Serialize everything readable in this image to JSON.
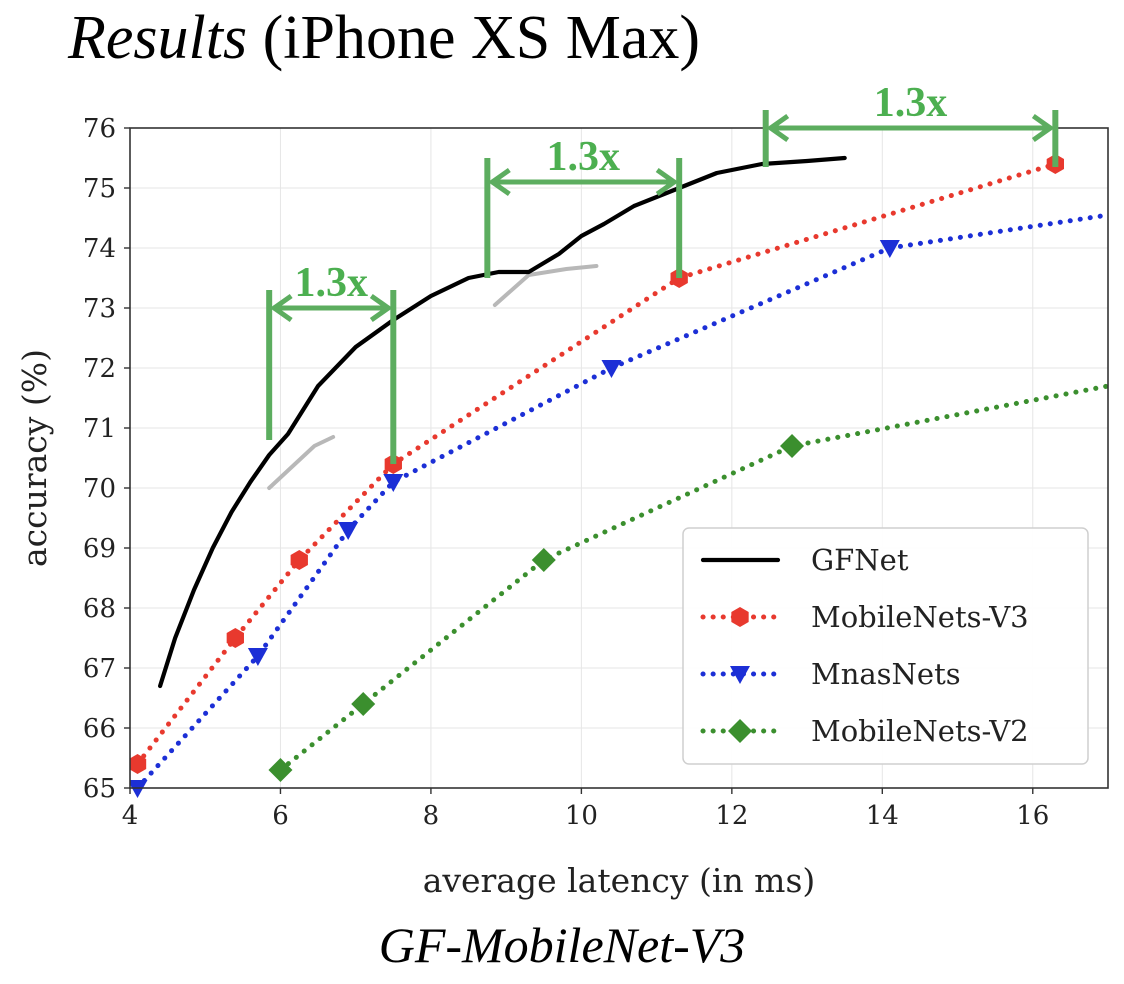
{
  "header": {
    "title_italic": "Results",
    "title_rest": " (iPhone XS Max)"
  },
  "caption": "GF-MobileNet-V3",
  "chart_data": {
    "type": "line",
    "xlabel": "average latency (in ms)",
    "ylabel": "accuracy (%)",
    "xlim": [
      4,
      17
    ],
    "ylim": [
      65,
      76
    ],
    "xticks": [
      4,
      6,
      8,
      10,
      12,
      14,
      16
    ],
    "yticks": [
      65,
      66,
      67,
      68,
      69,
      70,
      71,
      72,
      73,
      74,
      75,
      76
    ],
    "grid": true,
    "legend_position": "lower-right",
    "series": [
      {
        "name": "GFNet",
        "color": "#000000",
        "style": "solid",
        "marker": "none",
        "x": [
          4.4,
          4.6,
          4.85,
          5.1,
          5.35,
          5.6,
          5.85,
          6.1,
          6.5,
          7.0,
          7.5,
          8.0,
          8.5,
          8.9,
          9.3,
          9.7,
          10.0,
          10.3,
          10.7,
          11.2,
          11.8,
          12.4,
          13.0,
          13.5
        ],
        "y": [
          66.7,
          67.5,
          68.3,
          69.0,
          69.6,
          70.1,
          70.55,
          70.9,
          71.7,
          72.35,
          72.8,
          73.2,
          73.5,
          73.6,
          73.6,
          73.9,
          74.2,
          74.4,
          74.7,
          74.95,
          75.25,
          75.4,
          75.45,
          75.5
        ]
      },
      {
        "name": "MobileNets-V3",
        "color": "#e8392e",
        "style": "dotted",
        "marker": "hexagon",
        "x": [
          4.1,
          5.4,
          6.25,
          7.5,
          11.3,
          16.3
        ],
        "y": [
          65.4,
          67.5,
          68.8,
          70.4,
          73.5,
          75.4
        ]
      },
      {
        "name": "MnasNets",
        "color": "#1c2fd6",
        "style": "dotted",
        "marker": "triangle-down",
        "x": [
          4.1,
          5.7,
          6.9,
          7.5,
          10.4,
          14.1,
          17.0
        ],
        "y": [
          65.0,
          67.2,
          69.3,
          70.1,
          72.0,
          74.0,
          74.55
        ]
      },
      {
        "name": "MobileNets-V2",
        "color": "#3b8f2e",
        "style": "dotted",
        "marker": "diamond",
        "x": [
          6.0,
          7.1,
          9.5,
          12.8,
          17.0
        ],
        "y": [
          65.3,
          66.4,
          68.8,
          70.7,
          71.7
        ]
      }
    ],
    "faint_segments": [
      {
        "x": [
          5.85,
          6.45,
          6.7
        ],
        "y": [
          70.0,
          70.7,
          70.85
        ]
      },
      {
        "x": [
          8.85,
          9.3,
          9.8,
          10.2
        ],
        "y": [
          73.05,
          73.55,
          73.65,
          73.7
        ]
      }
    ],
    "annotations": [
      {
        "label": "1.3x",
        "x_start": 5.85,
        "x_end": 7.5,
        "y_arrow": 73.0,
        "y_bottom_start": 70.8,
        "y_bottom_end": 70.4,
        "y_top": 73.3
      },
      {
        "label": "1.3x",
        "x_start": 8.75,
        "x_end": 11.3,
        "y_arrow": 75.1,
        "y_bottom_start": 73.5,
        "y_bottom_end": 73.5,
        "y_top": 75.5
      },
      {
        "label": "1.3x",
        "x_start": 12.45,
        "x_end": 16.3,
        "y_arrow": 76.0,
        "y_bottom_start": 75.35,
        "y_bottom_end": 75.35,
        "y_top": 76.3
      }
    ]
  }
}
